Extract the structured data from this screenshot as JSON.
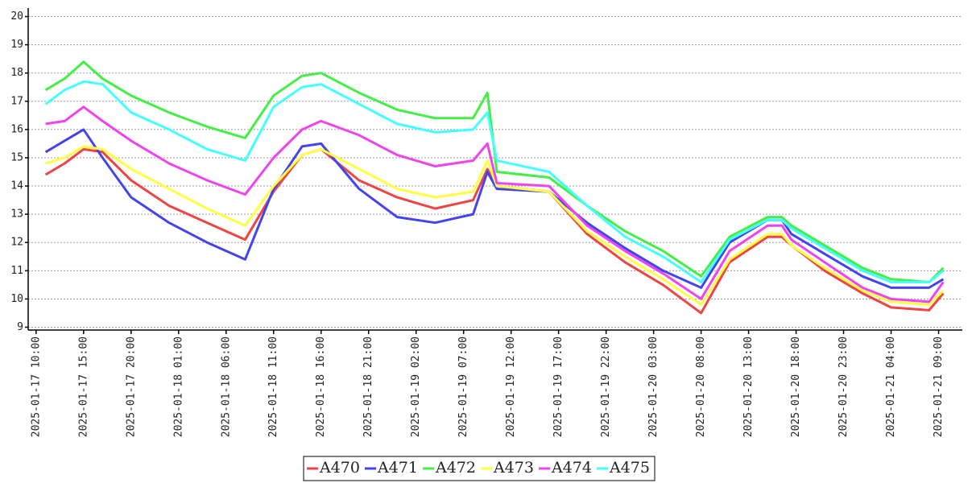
{
  "chart_data": {
    "type": "line",
    "x": [
      "2025-01-17 11:00",
      "2025-01-17 13:00",
      "2025-01-17 15:00",
      "2025-01-17 17:00",
      "2025-01-17 20:00",
      "2025-01-18 00:00",
      "2025-01-18 04:00",
      "2025-01-18 08:00",
      "2025-01-18 11:00",
      "2025-01-18 14:00",
      "2025-01-18 16:00",
      "2025-01-18 20:00",
      "2025-01-19 00:00",
      "2025-01-19 04:00",
      "2025-01-19 08:00",
      "2025-01-19 09:30",
      "2025-01-19 10:30",
      "2025-01-19 16:00",
      "2025-01-19 20:00",
      "2025-01-20 00:00",
      "2025-01-20 04:00",
      "2025-01-20 08:00",
      "2025-01-20 11:00",
      "2025-01-20 15:00",
      "2025-01-20 16:30",
      "2025-01-20 17:30",
      "2025-01-20 21:00",
      "2025-01-21 01:00",
      "2025-01-21 04:00",
      "2025-01-21 08:00",
      "2025-01-21 09:30"
    ],
    "series": [
      {
        "name": "A470",
        "color": "#ee4444",
        "values": [
          14.4,
          14.8,
          15.3,
          15.2,
          14.2,
          13.3,
          12.7,
          12.1,
          13.8,
          15.1,
          15.3,
          14.2,
          13.6,
          13.2,
          13.5,
          14.6,
          14.0,
          13.8,
          12.3,
          11.3,
          10.5,
          9.5,
          11.3,
          12.2,
          12.2,
          11.9,
          11.0,
          10.2,
          9.7,
          9.6,
          10.2
        ]
      },
      {
        "name": "A471",
        "color": "#4444ee",
        "values": [
          15.2,
          15.6,
          16.0,
          15.0,
          13.6,
          12.7,
          12.0,
          11.4,
          13.9,
          15.4,
          15.5,
          13.9,
          12.9,
          12.7,
          13.0,
          14.5,
          13.9,
          13.8,
          12.7,
          11.8,
          11.0,
          10.4,
          12.0,
          12.8,
          12.8,
          12.3,
          11.6,
          10.8,
          10.4,
          10.4,
          10.7
        ]
      },
      {
        "name": "A472",
        "color": "#44ee44",
        "values": [
          17.4,
          17.8,
          18.4,
          17.8,
          17.2,
          16.6,
          16.1,
          15.7,
          17.2,
          17.9,
          18.0,
          17.3,
          16.7,
          16.4,
          16.4,
          17.3,
          14.5,
          14.3,
          13.3,
          12.4,
          11.7,
          10.8,
          12.2,
          12.9,
          12.9,
          12.6,
          11.9,
          11.1,
          10.7,
          10.6,
          11.1
        ]
      },
      {
        "name": "A473",
        "color": "#ffff44",
        "values": [
          14.8,
          15.0,
          15.4,
          15.3,
          14.6,
          13.9,
          13.2,
          12.6,
          14.0,
          15.1,
          15.3,
          14.6,
          13.9,
          13.6,
          13.8,
          14.9,
          14.0,
          13.8,
          12.4,
          11.5,
          10.7,
          9.8,
          11.4,
          12.3,
          12.3,
          11.9,
          11.1,
          10.3,
          9.9,
          9.8,
          10.3
        ]
      },
      {
        "name": "A474",
        "color": "#ee44ee",
        "values": [
          16.2,
          16.3,
          16.8,
          16.3,
          15.6,
          14.8,
          14.2,
          13.7,
          15.0,
          16.0,
          16.3,
          15.8,
          15.1,
          14.7,
          14.9,
          15.5,
          14.1,
          14.0,
          12.6,
          11.7,
          10.9,
          10.0,
          11.7,
          12.6,
          12.6,
          12.1,
          11.3,
          10.4,
          10.0,
          9.9,
          10.6
        ]
      },
      {
        "name": "A475",
        "color": "#44ffff",
        "values": [
          16.9,
          17.4,
          17.7,
          17.6,
          16.6,
          16.0,
          15.3,
          14.9,
          16.8,
          17.5,
          17.6,
          16.9,
          16.2,
          15.9,
          16.0,
          16.6,
          14.9,
          14.5,
          13.3,
          12.2,
          11.5,
          10.6,
          12.1,
          12.8,
          12.8,
          12.5,
          11.8,
          11.0,
          10.6,
          10.6,
          11.0
        ]
      }
    ],
    "xlim": [
      "2025-01-17 09:10",
      "2025-01-21 11:30"
    ],
    "xticks": [
      "2025-01-17 10:00",
      "2025-01-17 15:00",
      "2025-01-17 20:00",
      "2025-01-18 01:00",
      "2025-01-18 06:00",
      "2025-01-18 11:00",
      "2025-01-18 16:00",
      "2025-01-18 21:00",
      "2025-01-19 02:00",
      "2025-01-19 07:00",
      "2025-01-19 12:00",
      "2025-01-19 17:00",
      "2025-01-19 22:00",
      "2025-01-20 03:00",
      "2025-01-20 08:00",
      "2025-01-20 13:00",
      "2025-01-20 18:00",
      "2025-01-20 23:00",
      "2025-01-21 04:00",
      "2025-01-21 09:00"
    ],
    "ylim": [
      8.9,
      20.3
    ],
    "yticks": [
      9,
      10,
      11,
      12,
      13,
      14,
      15,
      16,
      17,
      18,
      19,
      20
    ],
    "grid": true,
    "legend": "bottom"
  }
}
